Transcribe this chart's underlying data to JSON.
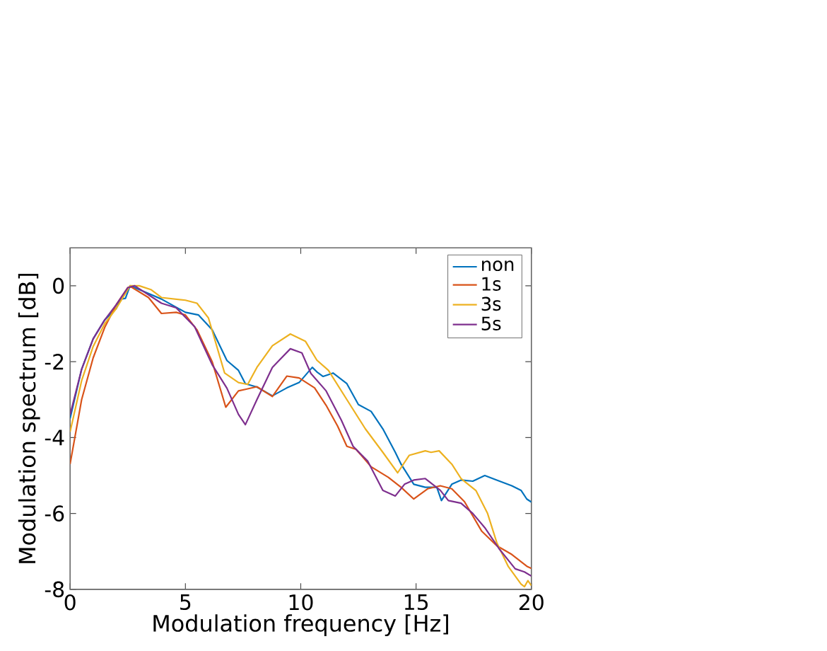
{
  "chart_data": {
    "type": "line",
    "xlabel": "Modulation frequency [Hz]",
    "ylabel": "Modulation spectrum [dB]",
    "xlim": [
      0,
      20
    ],
    "ylim": [
      -8,
      1
    ],
    "xticks": [
      0,
      5,
      10,
      15,
      20
    ],
    "yticks": [
      -8,
      -6,
      -4,
      -2,
      0
    ],
    "legend": "top right",
    "grid": false,
    "marker": "none",
    "line_style": "solid",
    "series": [
      {
        "name": "non",
        "color": "#0072bd",
        "x": [
          0,
          0.5,
          1,
          1.5,
          2,
          2.2,
          2.4,
          2.6,
          3.2,
          3.96,
          5.0,
          5.57,
          6.16,
          6.8,
          7.3,
          7.6,
          8.1,
          8.77,
          9.4,
          9.93,
          10.5,
          10.7,
          10.97,
          11.4,
          12.0,
          12.5,
          13.05,
          13.56,
          14.1,
          14.35,
          14.9,
          15.4,
          15.9,
          16.1,
          16.55,
          16.95,
          17.46,
          17.98,
          18.5,
          19.15,
          19.55,
          19.8,
          20
        ],
        "values": [
          -3.5,
          -2.2,
          -1.4,
          -0.9,
          -0.6,
          -0.35,
          -0.33,
          0,
          -0.15,
          -0.35,
          -0.7,
          -0.77,
          -1.16,
          -1.97,
          -2.23,
          -2.58,
          -2.67,
          -2.9,
          -2.69,
          -2.55,
          -2.15,
          -2.27,
          -2.39,
          -2.3,
          -2.58,
          -3.13,
          -3.31,
          -3.77,
          -4.39,
          -4.7,
          -5.23,
          -5.31,
          -5.31,
          -5.66,
          -5.23,
          -5.12,
          -5.15,
          -5.0,
          -5.12,
          -5.27,
          -5.39,
          -5.62,
          -5.7
        ]
      },
      {
        "name": "1s",
        "color": "#d95319",
        "x": [
          0,
          0.5,
          1,
          1.5,
          2,
          2.5,
          2.65,
          3.4,
          3.96,
          4.6,
          5.0,
          5.5,
          6.16,
          6.75,
          7.3,
          7.6,
          8.1,
          8.77,
          9.4,
          9.93,
          10.6,
          11.1,
          11.6,
          12.0,
          12.4,
          13.05,
          13.8,
          14.35,
          14.9,
          15.5,
          16.05,
          16.55,
          17.1,
          17.85,
          18.5,
          19.15,
          19.8,
          20
        ],
        "values": [
          -4.7,
          -3.0,
          -1.9,
          -1.1,
          -0.5,
          -0.05,
          -0.03,
          -0.31,
          -0.73,
          -0.7,
          -0.77,
          -1.16,
          -2.0,
          -3.2,
          -2.77,
          -2.73,
          -2.66,
          -2.92,
          -2.38,
          -2.43,
          -2.69,
          -3.15,
          -3.7,
          -4.23,
          -4.31,
          -4.77,
          -5.05,
          -5.31,
          -5.62,
          -5.35,
          -5.27,
          -5.35,
          -5.69,
          -6.47,
          -6.85,
          -7.08,
          -7.39,
          -7.45
        ]
      },
      {
        "name": "3s",
        "color": "#edb120",
        "x": [
          0,
          0.5,
          1,
          1.5,
          2,
          2.6,
          3.0,
          3.5,
          3.96,
          5.0,
          5.5,
          6.0,
          6.7,
          7.3,
          7.7,
          8.1,
          8.77,
          9.55,
          10.2,
          10.7,
          11.2,
          12.0,
          12.8,
          13.56,
          14.2,
          14.7,
          15.4,
          15.65,
          16.0,
          16.55,
          16.95,
          17.6,
          18.1,
          18.5,
          19.0,
          19.55,
          19.7,
          19.85,
          20
        ],
        "values": [
          -3.85,
          -2.5,
          -1.6,
          -1.0,
          -0.6,
          0,
          0,
          -0.1,
          -0.31,
          -0.38,
          -0.46,
          -0.85,
          -2.3,
          -2.55,
          -2.6,
          -2.15,
          -1.58,
          -1.27,
          -1.46,
          -1.96,
          -2.23,
          -3.0,
          -3.77,
          -4.39,
          -4.93,
          -4.47,
          -4.35,
          -4.39,
          -4.35,
          -4.7,
          -5.08,
          -5.4,
          -6.0,
          -6.77,
          -7.4,
          -7.86,
          -7.93,
          -7.77,
          -7.9
        ]
      },
      {
        "name": "5s",
        "color": "#7e2f8e",
        "x": [
          0,
          0.5,
          1,
          1.5,
          2,
          2.5,
          2.8,
          3.96,
          4.6,
          5.4,
          6.16,
          6.8,
          7.3,
          7.6,
          8.1,
          8.77,
          9.55,
          10.05,
          10.44,
          11.1,
          11.76,
          12.27,
          12.9,
          13.56,
          14.1,
          14.5,
          14.9,
          15.4,
          16.05,
          16.4,
          16.95,
          17.46,
          18.0,
          18.6,
          19.3,
          19.7,
          20
        ],
        "values": [
          -3.4,
          -2.2,
          -1.4,
          -0.9,
          -0.5,
          -0.05,
          0,
          -0.46,
          -0.58,
          -1.08,
          -2.08,
          -2.7,
          -3.39,
          -3.66,
          -3.0,
          -2.15,
          -1.66,
          -1.77,
          -2.31,
          -2.77,
          -3.54,
          -4.23,
          -4.62,
          -5.39,
          -5.54,
          -5.23,
          -5.12,
          -5.08,
          -5.39,
          -5.66,
          -5.73,
          -6.0,
          -6.39,
          -6.93,
          -7.46,
          -7.54,
          -7.65
        ]
      }
    ]
  }
}
